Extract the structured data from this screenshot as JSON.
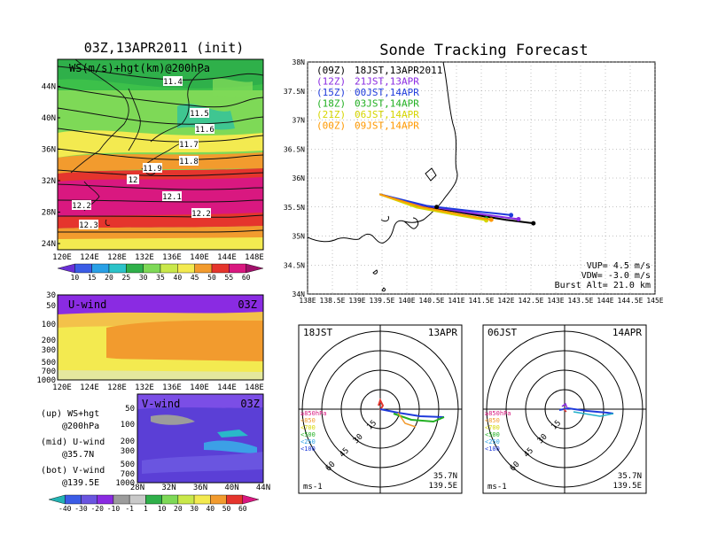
{
  "left_title": "03Z,13APR2011 (init)",
  "right_title": "Sonde Tracking Forecast",
  "colors": {
    "track_blue": "#1f3bdb",
    "track_purple": "#8a2be2",
    "track_green": "#22b022",
    "track_orange": "#ff9900",
    "track_yellow": "#d6d600",
    "black": "#000000"
  },
  "chart_data": [
    {
      "type": "heatmap",
      "panel": "ws-map",
      "title": "WS(m/s)+hgt(km)@200hPa",
      "x_ticks": [
        "120E",
        "124E",
        "128E",
        "132E",
        "136E",
        "140E",
        "144E",
        "148E"
      ],
      "y_ticks": [
        "24N",
        "28N",
        "32N",
        "36N",
        "40N",
        "44N"
      ],
      "contour_labels": [
        "11.4",
        "11.5",
        "11.6",
        "11.7",
        "11.8",
        "11.9",
        "12",
        "12.1",
        "12.2",
        "12.2",
        "12.3"
      ],
      "colorbar": [
        "10",
        "15",
        "20",
        "25",
        "30",
        "35",
        "40",
        "45",
        "50",
        "55",
        "60"
      ]
    },
    {
      "type": "heatmap",
      "panel": "u-wind",
      "title": "U-wind",
      "time_label": "03Z",
      "x_ticks": [
        "120E",
        "124E",
        "128E",
        "132E",
        "136E",
        "140E",
        "144E",
        "148E"
      ],
      "y_ticks": [
        "30",
        "50",
        "100",
        "200",
        "300",
        "500",
        "700",
        "1000"
      ]
    },
    {
      "type": "heatmap",
      "panel": "v-wind",
      "title": "V-wind",
      "time_label": "03Z",
      "x_ticks": [
        "28N",
        "32N",
        "36N",
        "40N",
        "44N"
      ],
      "y_ticks": [
        "50",
        "100",
        "200",
        "300",
        "500",
        "700",
        "1000"
      ],
      "colorbar": [
        "-40",
        "-30",
        "-20",
        "-10",
        "-1",
        "1",
        "10",
        "20",
        "30",
        "40",
        "50",
        "60"
      ]
    },
    {
      "type": "line",
      "panel": "track-map",
      "x_ticks": [
        "138E",
        "138.5E",
        "139E",
        "139.5E",
        "140E",
        "140.5E",
        "141E",
        "141.5E",
        "142E",
        "142.5E",
        "143E",
        "143.5E",
        "144E",
        "144.5E",
        "145E"
      ],
      "y_ticks": [
        "34N",
        "34.5N",
        "35N",
        "35.5N",
        "36N",
        "36.5N",
        "37N",
        "37.5N",
        "38N"
      ],
      "xlim": [
        138,
        145
      ],
      "ylim": [
        34,
        38
      ],
      "legend": [
        {
          "utc": "(09Z)",
          "jst": "18JST,13APR2011",
          "color": "#000000"
        },
        {
          "utc": "(12Z)",
          "jst": "21JST,13APR",
          "color": "#8a2be2"
        },
        {
          "utc": "(15Z)",
          "jst": "00JST,14APR",
          "color": "#1f3bdb"
        },
        {
          "utc": "(18Z)",
          "jst": "03JST,14APR",
          "color": "#22b022"
        },
        {
          "utc": "(21Z)",
          "jst": "06JST,14APR",
          "color": "#d6d600"
        },
        {
          "utc": "(00Z)",
          "jst": "09JST,14APR",
          "color": "#ff9900"
        }
      ],
      "series": [
        {
          "color": "#000000",
          "x": [
            139.45,
            140.3,
            141.2,
            142.0,
            142.55
          ],
          "y": [
            35.72,
            35.52,
            35.39,
            35.28,
            35.22
          ]
        },
        {
          "color": "#8a2be2",
          "x": [
            139.45,
            140.3,
            141.2,
            141.9,
            142.25
          ],
          "y": [
            35.72,
            35.53,
            35.41,
            35.33,
            35.29
          ]
        },
        {
          "color": "#1f3bdb",
          "x": [
            139.45,
            140.4,
            141.3,
            141.8,
            142.1
          ],
          "y": [
            35.72,
            35.52,
            35.43,
            35.39,
            35.36
          ]
        },
        {
          "color": "#22b022",
          "x": [
            139.45,
            140.2,
            140.9,
            141.6
          ],
          "y": [
            35.72,
            35.5,
            35.38,
            35.3
          ]
        },
        {
          "color": "#d6d600",
          "x": [
            139.45,
            140.2,
            141.0,
            141.6
          ],
          "y": [
            35.72,
            35.49,
            35.36,
            35.27
          ]
        },
        {
          "color": "#ff9900",
          "x": [
            139.45,
            140.3,
            141.1,
            141.7
          ],
          "y": [
            35.72,
            35.5,
            35.37,
            35.28
          ]
        }
      ],
      "info": [
        "VUP= 4.5 m/s",
        "VDW= -3.0 m/s",
        "Burst Alt= 21.0 km"
      ]
    },
    {
      "type": "scatter",
      "panel": "polar-18jst",
      "left_label": "18JST",
      "right_label": "13APR",
      "ring_labels": [
        "15",
        "30",
        "45",
        "60"
      ],
      "level_labels": [
        "≥850hPa",
        "<850",
        "<700",
        "<500",
        "<250",
        "<100"
      ],
      "unit": "ms-1",
      "lat": "35.7N",
      "lon": "139.5E"
    },
    {
      "type": "scatter",
      "panel": "polar-06jst",
      "left_label": "06JST",
      "right_label": "14APR",
      "ring_labels": [
        "15",
        "30",
        "45",
        "60"
      ],
      "level_labels": [
        "≥850hPa",
        "<850",
        "<700",
        "<500",
        "<250",
        "<100"
      ],
      "unit": "ms-1",
      "lat": "35.7N",
      "lon": "139.5E"
    }
  ],
  "bottom_legend": {
    "up": "(up) WS+hgt",
    "up2": "@200hPa",
    "mid": "(mid) U-wind",
    "mid2": "@35.7N",
    "bot": "(bot) V-wind",
    "bot2": "@139.5E"
  }
}
